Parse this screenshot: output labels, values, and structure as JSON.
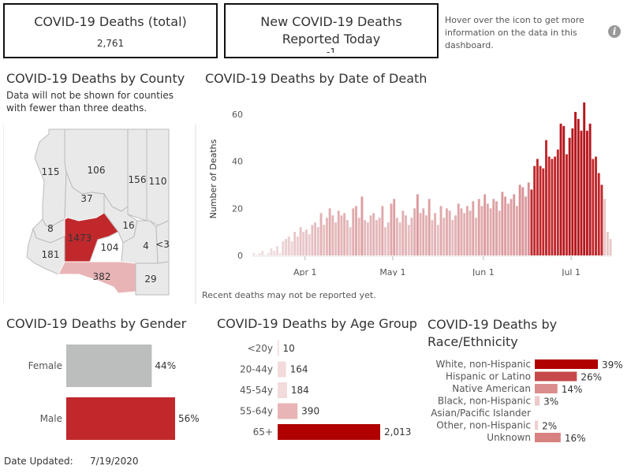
{
  "kpis": {
    "total_title": "COVID-19 Deaths (total)",
    "total_value": "2,761",
    "today_title": "New COVID-19 Deaths Reported Today",
    "today_value": "-1"
  },
  "info": {
    "text": "Hover over the icon to get more information on the data in this dashboard.",
    "icon": "info-icon"
  },
  "county": {
    "title": "COVID-19 Deaths by County",
    "subtitle": "Data will not be shown for counties with fewer than three deaths.",
    "labels": [
      "115",
      "106",
      "37",
      "156",
      "110",
      "8",
      "1473",
      "104",
      "16",
      "4",
      "<3",
      "181",
      "382",
      "29"
    ]
  },
  "date_chart_meta": {
    "title": "COVID-19 Deaths by Date of Death",
    "note": "Recent deaths may not be reported yet."
  },
  "gender_title": "COVID-19 Deaths by Gender",
  "age_title": "COVID-19 Deaths by Age Group",
  "race_title": "COVID-19 Deaths by Race/Ethnicity",
  "race_title_lines": [
    "COVID-19 Deaths by",
    "Race/Ethnicity"
  ],
  "footer": {
    "label": "Date Updated:",
    "value": "7/19/2020"
  },
  "colors": {
    "dark_red": "#b00000",
    "red": "#c0282c",
    "light_red": "#e8b4b6",
    "gray": "#bcbdbd",
    "lightest": "#f3dadb"
  },
  "chart_data": [
    {
      "type": "bar",
      "title": "COVID-19 Deaths by Date of Death",
      "ylabel": "Number of Deaths",
      "xticks": [
        "Apr 1",
        "May 1",
        "Jun 1",
        "Jul 1"
      ],
      "ylim": [
        0,
        65
      ],
      "yticks": [
        0,
        20,
        40,
        60
      ],
      "values": [
        1,
        0,
        1,
        2,
        0,
        1,
        3,
        2,
        4,
        1,
        6,
        7,
        8,
        6,
        10,
        8,
        12,
        10,
        11,
        9,
        13,
        14,
        12,
        18,
        13,
        16,
        20,
        17,
        14,
        19,
        17,
        18,
        15,
        12,
        20,
        21,
        16,
        25,
        15,
        14,
        17,
        18,
        15,
        16,
        21,
        12,
        14,
        22,
        24,
        16,
        14,
        19,
        17,
        13,
        16,
        20,
        26,
        18,
        20,
        17,
        24,
        15,
        18,
        13,
        21,
        16,
        20,
        19,
        15,
        17,
        22,
        20,
        18,
        21,
        19,
        23,
        16,
        24,
        21,
        26,
        22,
        20,
        24,
        23,
        19,
        27,
        25,
        22,
        24,
        26,
        21,
        30,
        29,
        25,
        31,
        28,
        38,
        41,
        38,
        37,
        49,
        42,
        41,
        42,
        45,
        56,
        55,
        43,
        50,
        54,
        61,
        58,
        53,
        65,
        53,
        56,
        41,
        42,
        35,
        30,
        24,
        10,
        7
      ],
      "highlight_from": 95,
      "xtick_index": [
        18,
        48,
        79,
        109
      ]
    },
    {
      "type": "bar",
      "orientation": "horizontal",
      "title": "COVID-19 Deaths by Gender",
      "categories": [
        "Female",
        "Male"
      ],
      "values": [
        44,
        56
      ],
      "labels": [
        "44%",
        "56%"
      ]
    },
    {
      "type": "bar",
      "orientation": "horizontal",
      "title": "COVID-19 Deaths by Age Group",
      "categories": [
        "<20y",
        "20-44y",
        "45-54y",
        "55-64y",
        "65+"
      ],
      "values": [
        10,
        164,
        184,
        390,
        2013
      ],
      "labels": [
        "10",
        "164",
        "184",
        "390",
        "2,013"
      ]
    },
    {
      "type": "bar",
      "orientation": "horizontal",
      "title": "COVID-19 Deaths by Race/Ethnicity",
      "categories": [
        "White, non-Hispanic",
        "Hispanic or Latino",
        "Native American",
        "Black, non-Hispanic",
        "Asian/Pacific Islander",
        "Other, non-Hispanic",
        "Unknown"
      ],
      "values": [
        39,
        26,
        14,
        3,
        0,
        2,
        16
      ],
      "labels": [
        "39%",
        "26%",
        "14%",
        "3%",
        "",
        "2%",
        "16%"
      ]
    }
  ]
}
